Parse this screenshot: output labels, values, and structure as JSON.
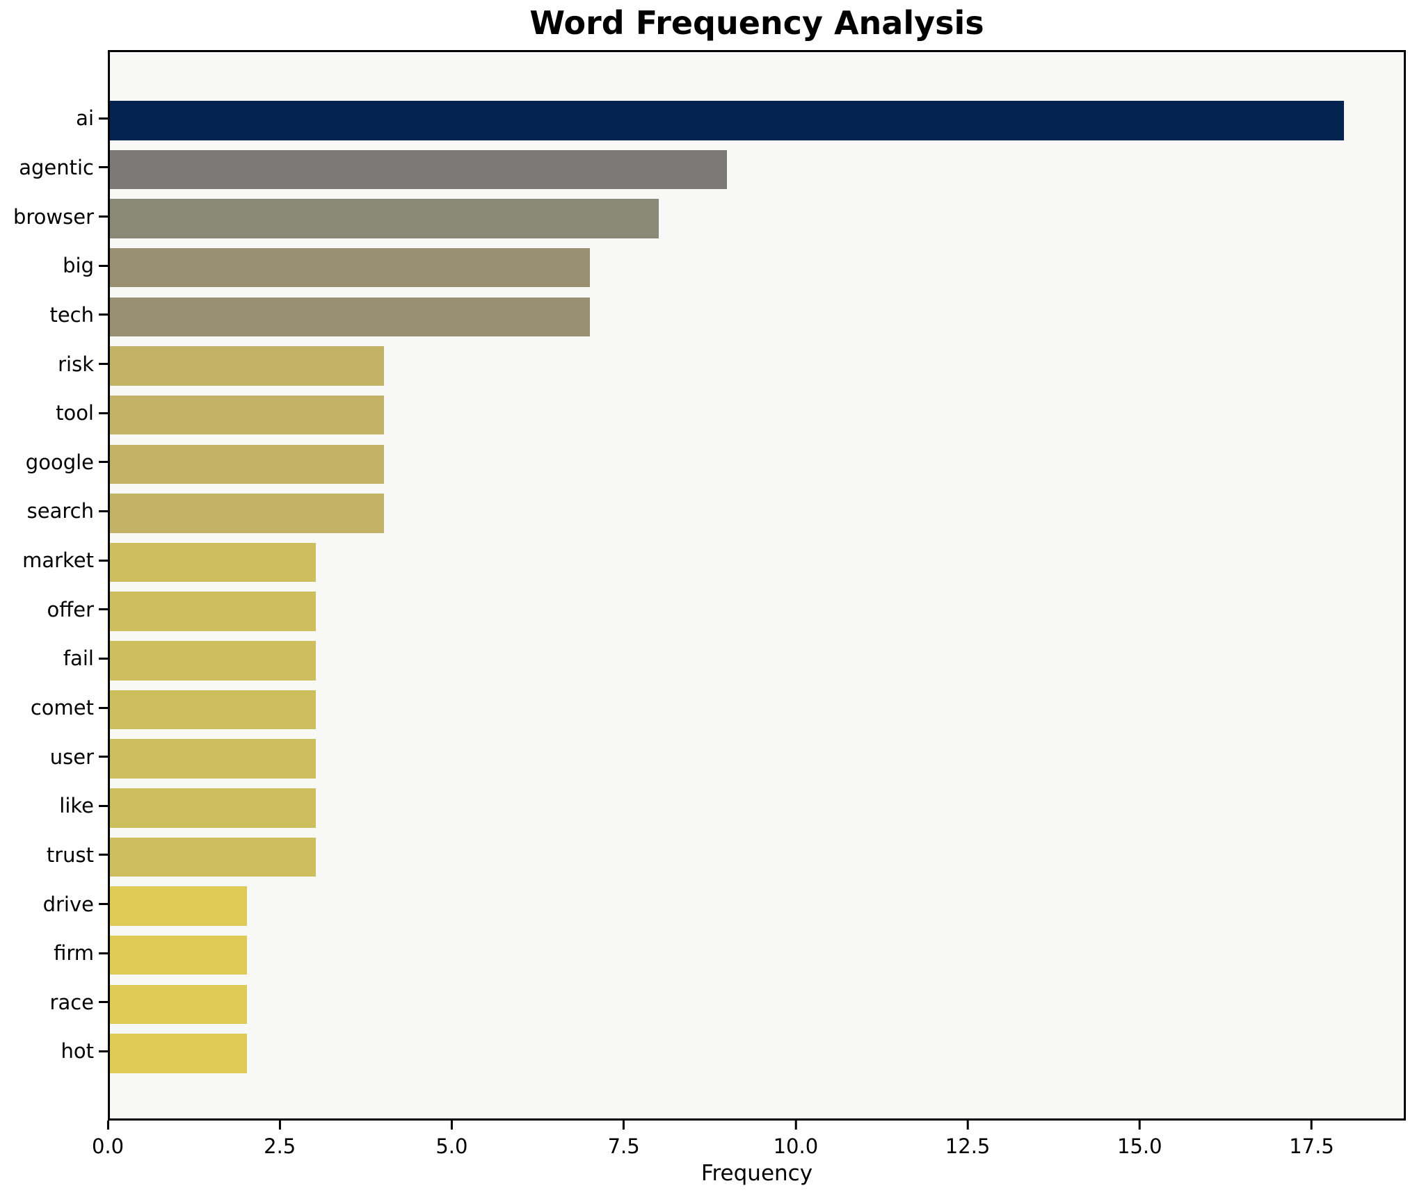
{
  "title": "Word Frequency Analysis",
  "chart_data": {
    "type": "bar",
    "orientation": "horizontal",
    "title": "Word Frequency Analysis",
    "xlabel": "Frequency",
    "ylabel": "",
    "categories": [
      "ai",
      "agentic",
      "browser",
      "big",
      "tech",
      "risk",
      "tool",
      "google",
      "search",
      "market",
      "offer",
      "fail",
      "comet",
      "user",
      "like",
      "trust",
      "drive",
      "firm",
      "race",
      "hot"
    ],
    "values": [
      18,
      9,
      8,
      7,
      7,
      4,
      4,
      4,
      4,
      3,
      3,
      3,
      3,
      3,
      3,
      3,
      2,
      2,
      2,
      2
    ],
    "bar_colors": [
      "#04234e",
      "#7b7a77",
      "#8a8877",
      "#989070",
      "#989070",
      "#c3b366",
      "#c3b366",
      "#c3b366",
      "#c3b366",
      "#cebe5d",
      "#cebe5d",
      "#cebe5d",
      "#cebe5d",
      "#cebe5d",
      "#cebe5d",
      "#cebe5d",
      "#ddcb55",
      "#ddcb55",
      "#ddcb55",
      "#ddcb55"
    ],
    "xlim": [
      0,
      18.87
    ],
    "xticks": [
      0,
      2.5,
      5,
      7.5,
      10,
      12.5,
      15,
      17.5
    ],
    "xtick_labels": [
      "0.0",
      "2.5",
      "5.0",
      "7.5",
      "10.0",
      "12.5",
      "15.0",
      "17.5"
    ],
    "grid": false,
    "legend": null,
    "colors": {
      "plot_background": "#f8f8f7",
      "figure_background": "#ffffff",
      "spine": "#000000",
      "text": "#000000"
    }
  }
}
